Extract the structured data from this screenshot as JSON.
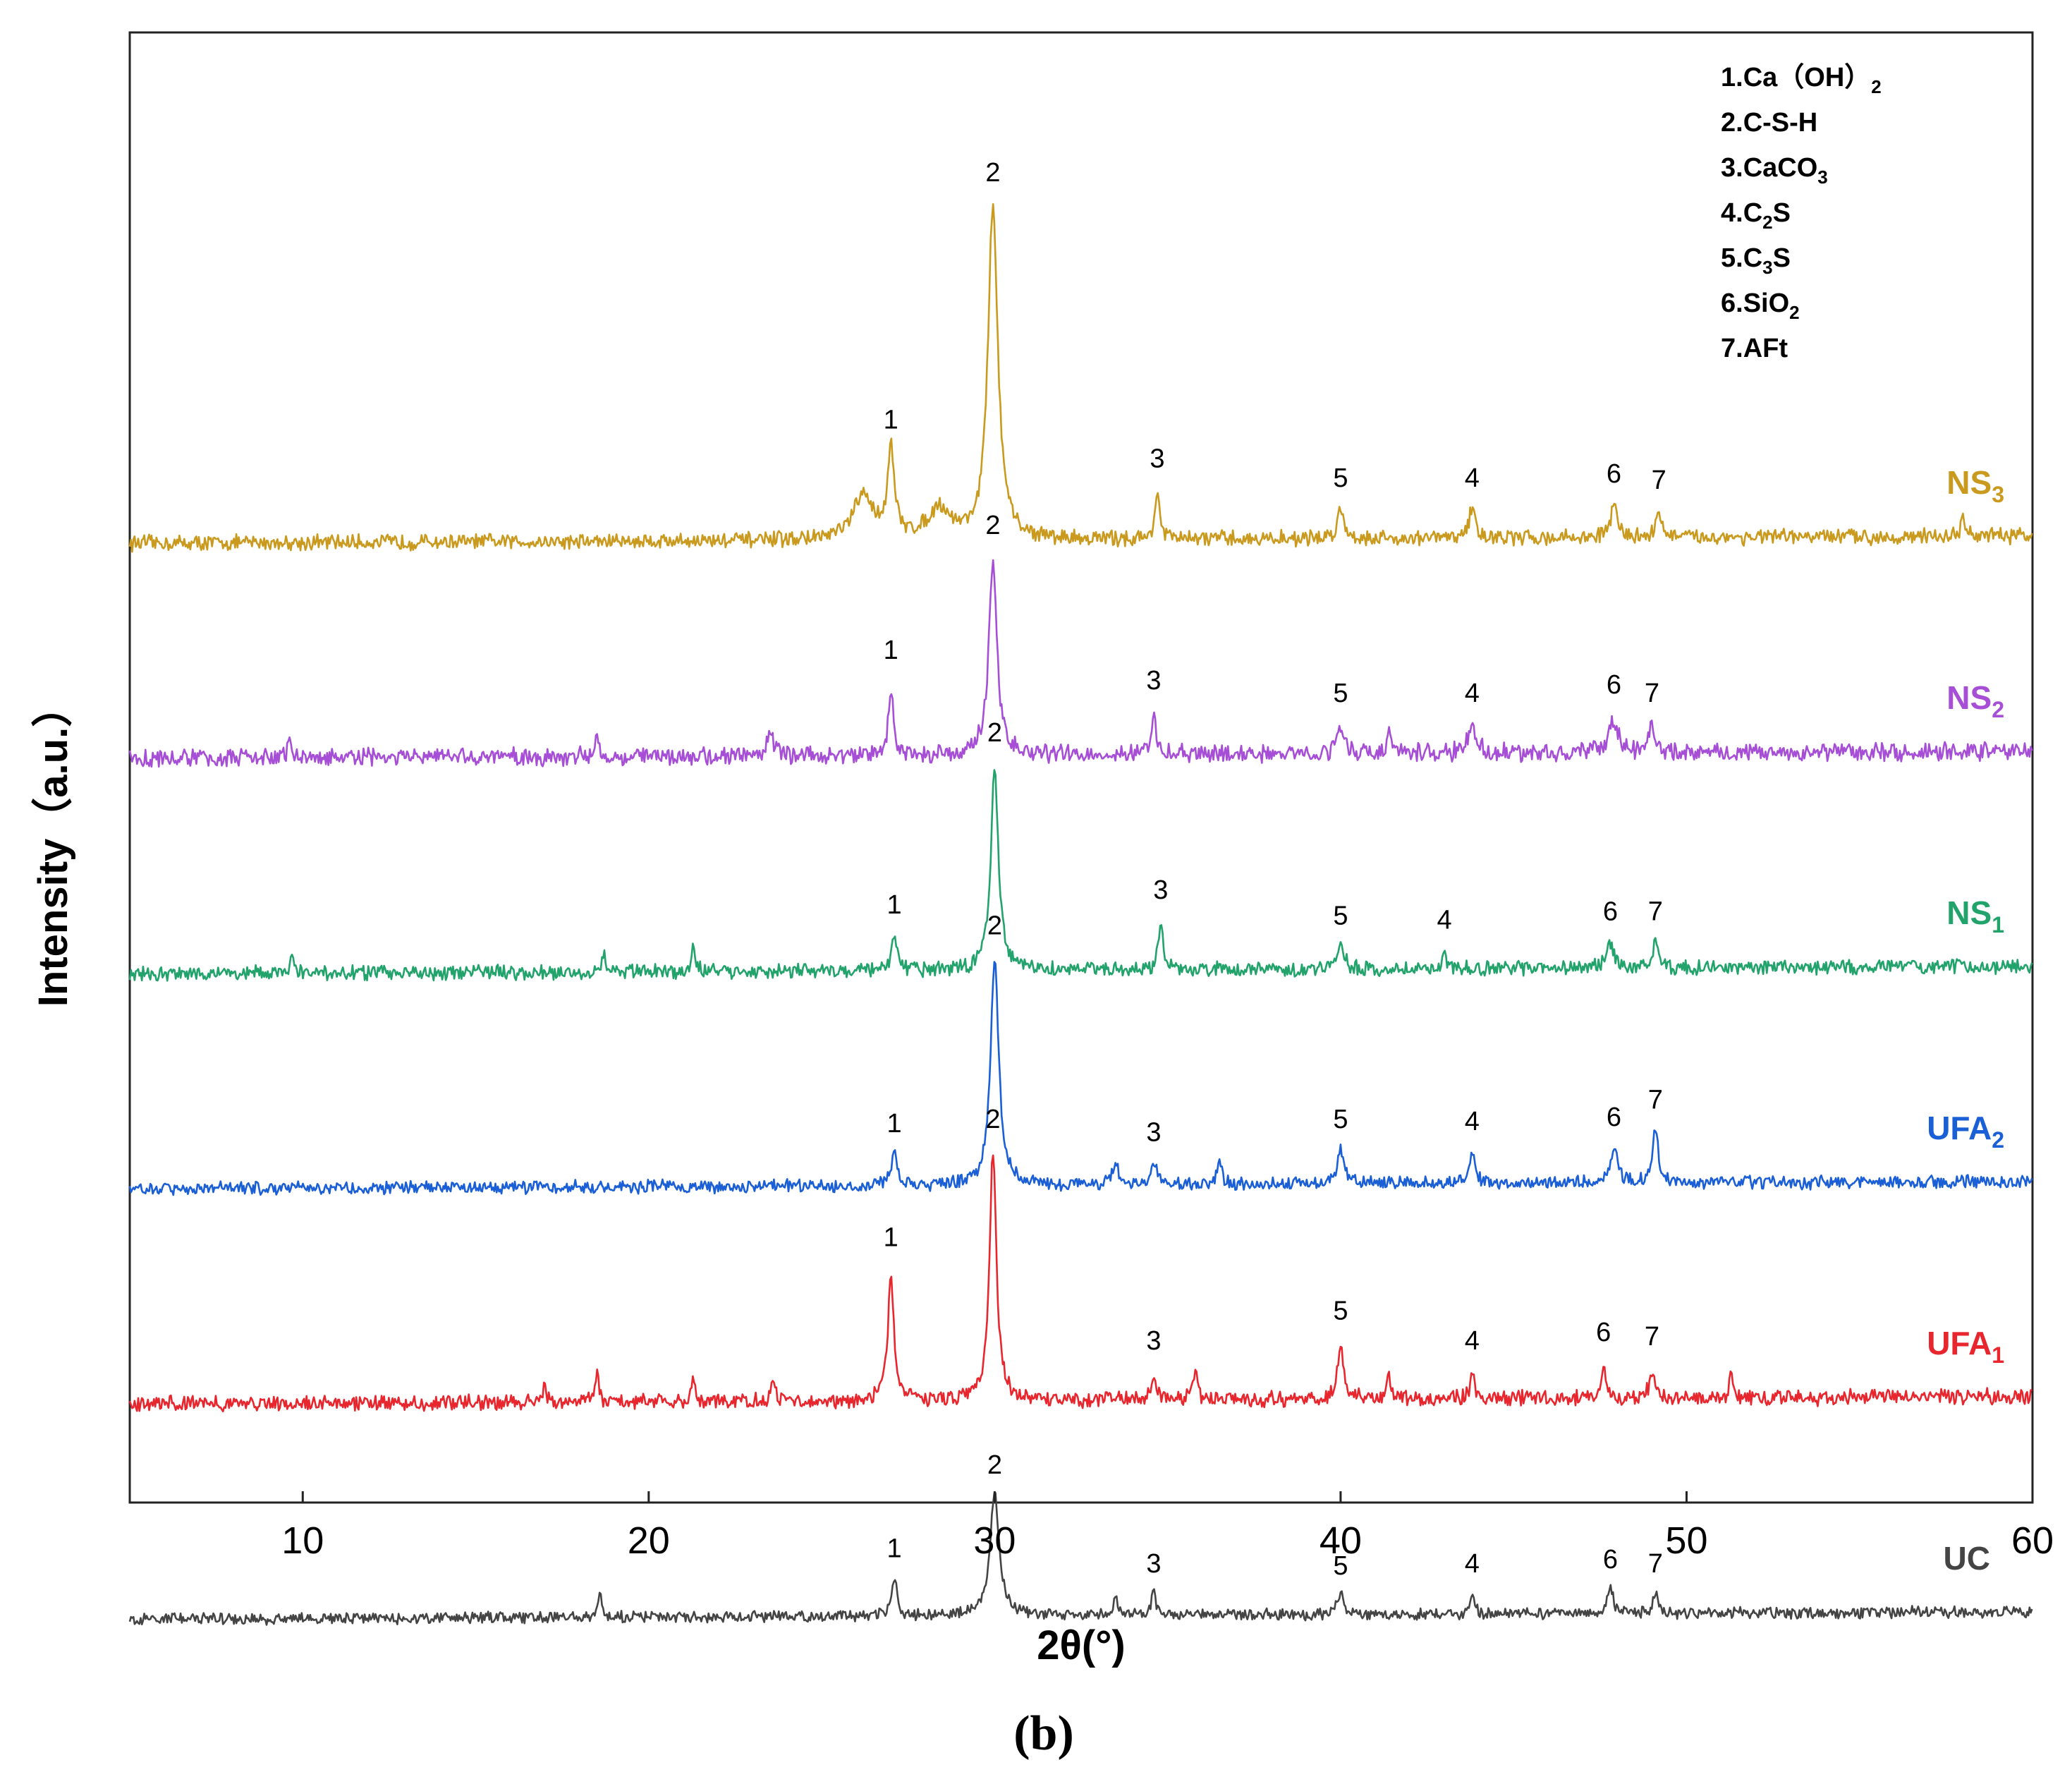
{
  "chart_data": {
    "type": "line",
    "title": "",
    "xlabel": "2θ(°)",
    "ylabel": "Intensity（a.u.）",
    "xlim": [
      5,
      60
    ],
    "xticks": [
      10,
      20,
      30,
      40,
      50,
      60
    ],
    "grid": false,
    "caption": "(b)",
    "legend": {
      "placement": "top-right",
      "entries": [
        {
          "num": "1.",
          "base": "Ca（OH）",
          "sub": "2",
          "post": ""
        },
        {
          "num": "2.",
          "base": "C-S-H",
          "sub": "",
          "post": ""
        },
        {
          "num": "3.",
          "base": "CaCO",
          "sub": "3",
          "post": ""
        },
        {
          "num": "4.",
          "base": "C",
          "sub": "2",
          "post": "S"
        },
        {
          "num": "5.",
          "base": "C",
          "sub": "3",
          "post": "S"
        },
        {
          "num": "6.",
          "base": "SiO",
          "sub": "2",
          "post": ""
        },
        {
          "num": "7.",
          "base": "AFt",
          "sub": "",
          "post": ""
        }
      ]
    },
    "series": [
      {
        "name": "NS3",
        "label": "NS",
        "sub": "3",
        "color": "#c99a1e",
        "baseline": 4.0,
        "noise": 0.03,
        "peaks": [
          {
            "x": 27.0,
            "h": 0.4,
            "w": 0.12,
            "label": "1"
          },
          {
            "x": 29.95,
            "h": 1.55,
            "w": 0.17,
            "label": "2"
          },
          {
            "x": 34.7,
            "h": 0.22,
            "w": 0.08,
            "label": "3"
          },
          {
            "x": 40.0,
            "h": 0.13,
            "w": 0.12,
            "label": "5"
          },
          {
            "x": 43.8,
            "h": 0.13,
            "w": 0.12,
            "label": "4"
          },
          {
            "x": 47.9,
            "h": 0.15,
            "w": 0.12,
            "label": "6"
          },
          {
            "x": 49.2,
            "h": 0.12,
            "w": 0.1,
            "label": "7"
          },
          {
            "x": 26.2,
            "h": 0.2,
            "w": 0.35,
            "label": ""
          },
          {
            "x": 28.4,
            "h": 0.14,
            "w": 0.4,
            "label": ""
          },
          {
            "x": 58.0,
            "h": 0.08,
            "w": 0.08,
            "label": ""
          }
        ]
      },
      {
        "name": "NS2",
        "label": "NS",
        "sub": "2",
        "color": "#a64fd6",
        "baseline": 3.0,
        "noise": 0.035,
        "peaks": [
          {
            "x": 27.0,
            "h": 0.32,
            "w": 0.08,
            "label": "1"
          },
          {
            "x": 29.95,
            "h": 0.9,
            "w": 0.14,
            "label": "2"
          },
          {
            "x": 34.6,
            "h": 0.18,
            "w": 0.08,
            "label": "3"
          },
          {
            "x": 40.0,
            "h": 0.12,
            "w": 0.14,
            "label": "5"
          },
          {
            "x": 43.8,
            "h": 0.12,
            "w": 0.14,
            "label": "4"
          },
          {
            "x": 47.9,
            "h": 0.16,
            "w": 0.14,
            "label": "6"
          },
          {
            "x": 49.0,
            "h": 0.12,
            "w": 0.12,
            "label": "7"
          },
          {
            "x": 9.6,
            "h": 0.1,
            "w": 0.05,
            "label": ""
          },
          {
            "x": 18.5,
            "h": 0.09,
            "w": 0.06,
            "label": ""
          },
          {
            "x": 23.5,
            "h": 0.13,
            "w": 0.1,
            "label": ""
          },
          {
            "x": 41.4,
            "h": 0.12,
            "w": 0.06,
            "label": ""
          }
        ]
      },
      {
        "name": "NS1",
        "label": "NS",
        "sub": "1",
        "color": "#22a36b",
        "baseline": 2.0,
        "noise": 0.028,
        "peaks": [
          {
            "x": 27.1,
            "h": 0.15,
            "w": 0.1,
            "label": "1"
          },
          {
            "x": 30.0,
            "h": 0.95,
            "w": 0.13,
            "label": "2"
          },
          {
            "x": 34.8,
            "h": 0.22,
            "w": 0.08,
            "label": "3"
          },
          {
            "x": 40.0,
            "h": 0.1,
            "w": 0.12,
            "label": "5"
          },
          {
            "x": 43.0,
            "h": 0.08,
            "w": 0.06,
            "label": "4"
          },
          {
            "x": 47.8,
            "h": 0.12,
            "w": 0.12,
            "label": "6"
          },
          {
            "x": 49.1,
            "h": 0.12,
            "w": 0.08,
            "label": "7"
          },
          {
            "x": 21.3,
            "h": 0.12,
            "w": 0.06,
            "label": ""
          },
          {
            "x": 18.7,
            "h": 0.1,
            "w": 0.05,
            "label": ""
          },
          {
            "x": 9.7,
            "h": 0.08,
            "w": 0.05,
            "label": ""
          }
        ]
      },
      {
        "name": "UFA2",
        "label": "UFA",
        "sub": "2",
        "color": "#1b5fd6",
        "baseline": 1.0,
        "noise": 0.025,
        "peaks": [
          {
            "x": 27.1,
            "h": 0.14,
            "w": 0.12,
            "label": "1"
          },
          {
            "x": 30.0,
            "h": 1.06,
            "w": 0.14,
            "label": "2"
          },
          {
            "x": 34.6,
            "h": 0.1,
            "w": 0.12,
            "label": "3"
          },
          {
            "x": 40.0,
            "h": 0.16,
            "w": 0.12,
            "label": "5"
          },
          {
            "x": 43.8,
            "h": 0.15,
            "w": 0.1,
            "label": "4"
          },
          {
            "x": 47.9,
            "h": 0.17,
            "w": 0.12,
            "label": "6"
          },
          {
            "x": 49.1,
            "h": 0.25,
            "w": 0.1,
            "label": "7"
          },
          {
            "x": 36.5,
            "h": 0.12,
            "w": 0.08,
            "label": ""
          },
          {
            "x": 33.5,
            "h": 0.1,
            "w": 0.1,
            "label": ""
          }
        ]
      },
      {
        "name": "UFA1",
        "label": "UFA",
        "sub": "1",
        "color": "#e8262e",
        "baseline": 0.0,
        "noise": 0.03,
        "peaks": [
          {
            "x": 27.0,
            "h": 0.6,
            "w": 0.1,
            "label": "1"
          },
          {
            "x": 29.95,
            "h": 1.15,
            "w": 0.12,
            "label": "2"
          },
          {
            "x": 34.6,
            "h": 0.12,
            "w": 0.1,
            "label": "3"
          },
          {
            "x": 40.0,
            "h": 0.26,
            "w": 0.1,
            "label": "5"
          },
          {
            "x": 43.8,
            "h": 0.12,
            "w": 0.08,
            "label": "4"
          },
          {
            "x": 47.6,
            "h": 0.16,
            "w": 0.08,
            "label": "6"
          },
          {
            "x": 49.0,
            "h": 0.14,
            "w": 0.08,
            "label": "7"
          },
          {
            "x": 18.5,
            "h": 0.14,
            "w": 0.06,
            "label": ""
          },
          {
            "x": 17.0,
            "h": 0.1,
            "w": 0.05,
            "label": ""
          },
          {
            "x": 21.3,
            "h": 0.12,
            "w": 0.06,
            "label": ""
          },
          {
            "x": 23.6,
            "h": 0.12,
            "w": 0.06,
            "label": ""
          },
          {
            "x": 35.8,
            "h": 0.12,
            "w": 0.08,
            "label": ""
          },
          {
            "x": 41.4,
            "h": 0.12,
            "w": 0.06,
            "label": ""
          },
          {
            "x": 51.3,
            "h": 0.12,
            "w": 0.06,
            "label": ""
          }
        ]
      },
      {
        "name": "UC",
        "label": "UC",
        "sub": "",
        "color": "#444444",
        "baseline": -1.0,
        "noise": 0.022,
        "peaks": [
          {
            "x": 27.1,
            "h": 0.17,
            "w": 0.1,
            "label": "1"
          },
          {
            "x": 30.0,
            "h": 0.56,
            "w": 0.16,
            "label": "2"
          },
          {
            "x": 34.6,
            "h": 0.1,
            "w": 0.08,
            "label": "3"
          },
          {
            "x": 40.0,
            "h": 0.09,
            "w": 0.12,
            "label": "5"
          },
          {
            "x": 43.8,
            "h": 0.1,
            "w": 0.06,
            "label": "4"
          },
          {
            "x": 47.8,
            "h": 0.12,
            "w": 0.1,
            "label": "6"
          },
          {
            "x": 49.1,
            "h": 0.1,
            "w": 0.08,
            "label": "7"
          },
          {
            "x": 18.6,
            "h": 0.12,
            "w": 0.05,
            "label": ""
          },
          {
            "x": 33.5,
            "h": 0.1,
            "w": 0.05,
            "label": ""
          }
        ]
      }
    ]
  }
}
